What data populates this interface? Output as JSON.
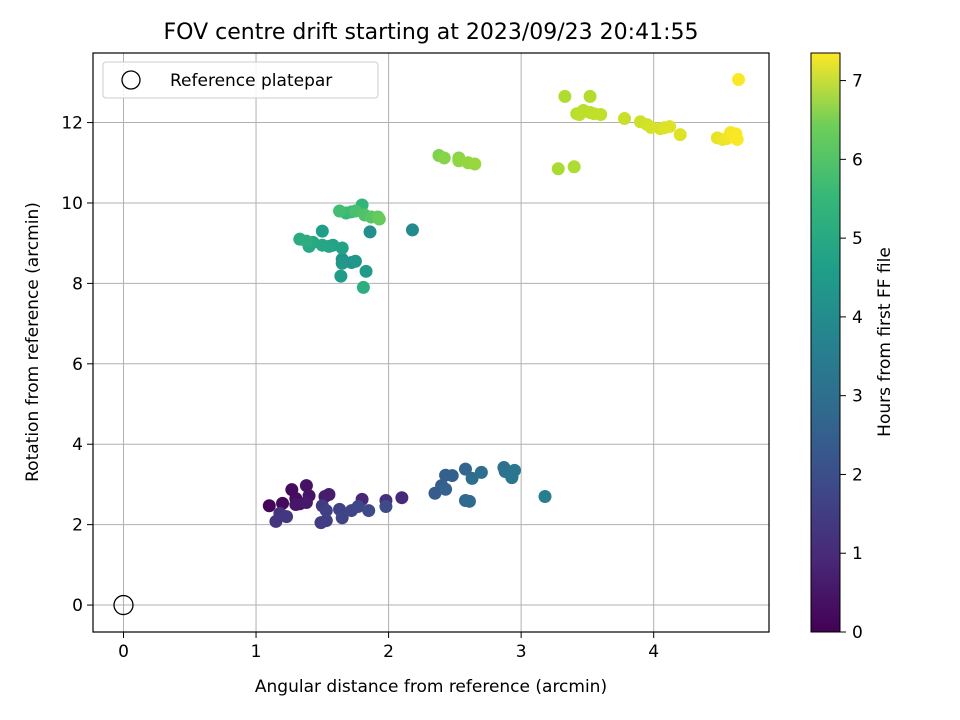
{
  "chart_data": {
    "type": "scatter",
    "title": "FOV centre drift starting at 2023/09/23 20:41:55",
    "xlabel": "Angular distance from reference (arcmin)",
    "ylabel": "Rotation from reference (arcmin)",
    "xlim": [
      -0.23,
      4.87
    ],
    "ylim": [
      -0.67,
      13.73
    ],
    "xticks": [
      "0",
      "1",
      "2",
      "3",
      "4"
    ],
    "yticks": [
      "0",
      "2",
      "4",
      "6",
      "8",
      "10",
      "12"
    ],
    "grid": true,
    "legend": {
      "placement": "top-left",
      "entries": [
        "Reference platepar"
      ]
    },
    "reference_point": {
      "x": 0,
      "y": 0
    },
    "colorbar": {
      "label": "Hours from first FF file",
      "min": 0,
      "max": 7.35,
      "ticks": [
        "0",
        "1",
        "2",
        "3",
        "4",
        "5",
        "6",
        "7"
      ],
      "colormap": "viridis"
    },
    "points": [
      {
        "x": 1.1,
        "y": 2.47,
        "c": 0.1
      },
      {
        "x": 1.2,
        "y": 2.53,
        "c": 0.15
      },
      {
        "x": 1.27,
        "y": 2.87,
        "c": 0.2
      },
      {
        "x": 1.3,
        "y": 2.65,
        "c": 0.25
      },
      {
        "x": 1.33,
        "y": 2.52,
        "c": 0.3
      },
      {
        "x": 1.38,
        "y": 2.97,
        "c": 0.35
      },
      {
        "x": 1.4,
        "y": 2.72,
        "c": 0.4
      },
      {
        "x": 1.3,
        "y": 2.5,
        "c": 0.45
      },
      {
        "x": 1.52,
        "y": 2.7,
        "c": 0.55
      },
      {
        "x": 1.55,
        "y": 2.75,
        "c": 0.6
      },
      {
        "x": 1.38,
        "y": 2.55,
        "c": 0.5
      },
      {
        "x": 1.8,
        "y": 2.63,
        "c": 0.8
      },
      {
        "x": 2.1,
        "y": 2.67,
        "c": 0.9
      },
      {
        "x": 1.98,
        "y": 2.6,
        "c": 1.0
      },
      {
        "x": 1.18,
        "y": 2.28,
        "c": 1.1
      },
      {
        "x": 1.15,
        "y": 2.08,
        "c": 1.15
      },
      {
        "x": 1.23,
        "y": 2.2,
        "c": 1.2
      },
      {
        "x": 1.5,
        "y": 2.47,
        "c": 1.25
      },
      {
        "x": 1.49,
        "y": 2.05,
        "c": 1.3
      },
      {
        "x": 1.53,
        "y": 2.1,
        "c": 1.35
      },
      {
        "x": 1.53,
        "y": 2.35,
        "c": 1.4
      },
      {
        "x": 1.63,
        "y": 2.38,
        "c": 1.45
      },
      {
        "x": 1.65,
        "y": 2.17,
        "c": 1.5
      },
      {
        "x": 1.72,
        "y": 2.35,
        "c": 1.55
      },
      {
        "x": 1.77,
        "y": 2.45,
        "c": 1.6
      },
      {
        "x": 1.85,
        "y": 2.35,
        "c": 1.65
      },
      {
        "x": 1.98,
        "y": 2.45,
        "c": 1.7
      },
      {
        "x": 2.35,
        "y": 2.78,
        "c": 2.1
      },
      {
        "x": 2.4,
        "y": 2.97,
        "c": 2.15
      },
      {
        "x": 2.43,
        "y": 3.23,
        "c": 2.2
      },
      {
        "x": 2.48,
        "y": 3.22,
        "c": 2.25
      },
      {
        "x": 2.43,
        "y": 2.88,
        "c": 2.3
      },
      {
        "x": 2.58,
        "y": 3.38,
        "c": 2.4
      },
      {
        "x": 2.58,
        "y": 2.6,
        "c": 2.45
      },
      {
        "x": 2.61,
        "y": 2.58,
        "c": 2.5
      },
      {
        "x": 2.63,
        "y": 3.15,
        "c": 2.6
      },
      {
        "x": 2.7,
        "y": 3.3,
        "c": 2.65
      },
      {
        "x": 2.87,
        "y": 3.42,
        "c": 2.7
      },
      {
        "x": 2.88,
        "y": 3.32,
        "c": 2.75
      },
      {
        "x": 2.93,
        "y": 3.17,
        "c": 2.8
      },
      {
        "x": 2.95,
        "y": 3.35,
        "c": 2.85
      },
      {
        "x": 2.93,
        "y": 3.2,
        "c": 2.9
      },
      {
        "x": 3.18,
        "y": 2.7,
        "c": 3.1
      },
      {
        "x": 2.18,
        "y": 9.33,
        "c": 3.5
      },
      {
        "x": 1.86,
        "y": 9.28,
        "c": 3.65
      },
      {
        "x": 1.65,
        "y": 8.6,
        "c": 3.75
      },
      {
        "x": 1.72,
        "y": 8.52,
        "c": 3.8
      },
      {
        "x": 1.75,
        "y": 8.55,
        "c": 3.85
      },
      {
        "x": 1.65,
        "y": 8.5,
        "c": 3.9
      },
      {
        "x": 1.83,
        "y": 8.3,
        "c": 4.0
      },
      {
        "x": 1.64,
        "y": 8.18,
        "c": 4.05
      },
      {
        "x": 1.5,
        "y": 9.3,
        "c": 4.1
      },
      {
        "x": 1.58,
        "y": 8.95,
        "c": 4.2
      },
      {
        "x": 1.65,
        "y": 8.88,
        "c": 4.25
      },
      {
        "x": 1.55,
        "y": 8.92,
        "c": 4.3
      },
      {
        "x": 1.5,
        "y": 8.95,
        "c": 4.35
      },
      {
        "x": 1.4,
        "y": 8.92,
        "c": 4.4
      },
      {
        "x": 1.43,
        "y": 9.02,
        "c": 4.45
      },
      {
        "x": 1.33,
        "y": 9.1,
        "c": 4.5
      },
      {
        "x": 1.38,
        "y": 9.05,
        "c": 4.55
      },
      {
        "x": 1.81,
        "y": 7.9,
        "c": 4.6
      },
      {
        "x": 1.8,
        "y": 9.95,
        "c": 4.8
      },
      {
        "x": 1.68,
        "y": 9.75,
        "c": 4.9
      },
      {
        "x": 1.72,
        "y": 9.78,
        "c": 5.0
      },
      {
        "x": 1.63,
        "y": 9.8,
        "c": 5.1
      },
      {
        "x": 1.75,
        "y": 9.8,
        "c": 5.2
      },
      {
        "x": 1.82,
        "y": 9.7,
        "c": 5.3
      },
      {
        "x": 1.87,
        "y": 9.65,
        "c": 5.4
      },
      {
        "x": 1.92,
        "y": 9.65,
        "c": 5.5
      },
      {
        "x": 1.93,
        "y": 9.6,
        "c": 5.6
      },
      {
        "x": 2.38,
        "y": 11.18,
        "c": 5.9
      },
      {
        "x": 2.42,
        "y": 11.12,
        "c": 6.0
      },
      {
        "x": 2.53,
        "y": 11.12,
        "c": 6.05
      },
      {
        "x": 2.53,
        "y": 11.05,
        "c": 6.1
      },
      {
        "x": 2.6,
        "y": 11.0,
        "c": 6.15
      },
      {
        "x": 2.65,
        "y": 10.97,
        "c": 6.2
      },
      {
        "x": 3.28,
        "y": 10.85,
        "c": 6.4
      },
      {
        "x": 3.4,
        "y": 10.9,
        "c": 6.45
      },
      {
        "x": 3.33,
        "y": 12.65,
        "c": 6.45
      },
      {
        "x": 3.52,
        "y": 12.65,
        "c": 6.5
      },
      {
        "x": 3.42,
        "y": 12.22,
        "c": 6.55
      },
      {
        "x": 3.47,
        "y": 12.3,
        "c": 6.55
      },
      {
        "x": 3.44,
        "y": 12.2,
        "c": 6.6
      },
      {
        "x": 3.52,
        "y": 12.25,
        "c": 6.6
      },
      {
        "x": 3.55,
        "y": 12.22,
        "c": 6.65
      },
      {
        "x": 3.6,
        "y": 12.2,
        "c": 6.65
      },
      {
        "x": 3.78,
        "y": 12.1,
        "c": 6.75
      },
      {
        "x": 3.9,
        "y": 12.02,
        "c": 6.8
      },
      {
        "x": 3.95,
        "y": 11.95,
        "c": 6.85
      },
      {
        "x": 3.98,
        "y": 11.88,
        "c": 6.9
      },
      {
        "x": 4.05,
        "y": 11.85,
        "c": 6.9
      },
      {
        "x": 4.08,
        "y": 11.87,
        "c": 6.95
      },
      {
        "x": 4.12,
        "y": 11.9,
        "c": 7.0
      },
      {
        "x": 4.2,
        "y": 11.7,
        "c": 7.0
      },
      {
        "x": 4.48,
        "y": 11.62,
        "c": 7.1
      },
      {
        "x": 4.52,
        "y": 11.58,
        "c": 7.15
      },
      {
        "x": 4.55,
        "y": 11.6,
        "c": 7.2
      },
      {
        "x": 4.58,
        "y": 11.75,
        "c": 7.25
      },
      {
        "x": 4.6,
        "y": 11.65,
        "c": 7.3
      },
      {
        "x": 4.62,
        "y": 11.72,
        "c": 7.3
      },
      {
        "x": 4.63,
        "y": 11.58,
        "c": 7.32
      },
      {
        "x": 4.64,
        "y": 13.07,
        "c": 7.34
      }
    ]
  }
}
